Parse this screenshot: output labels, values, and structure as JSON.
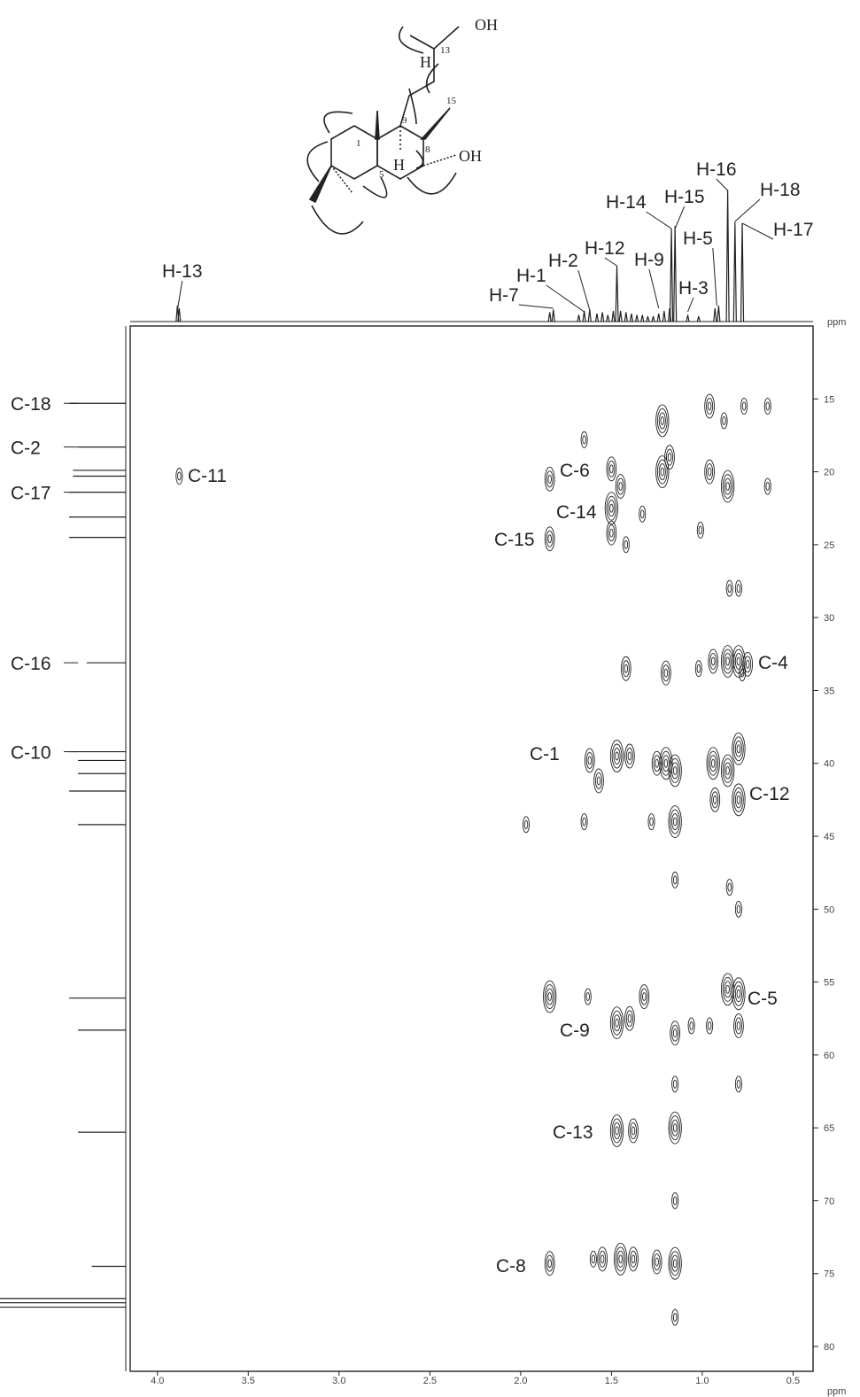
{
  "structure": {
    "labels": [
      "OH",
      "13",
      "H",
      "15",
      "9",
      "8",
      "OH",
      "1",
      "5",
      "H"
    ]
  },
  "chart_data": {
    "type": "hmbc",
    "x_label": "ppm",
    "y_label": "ppm",
    "xlim": [
      4.15,
      0.39
    ],
    "xticks": [
      {
        "value": 4,
        "label": "4.0"
      },
      {
        "value": 3.5,
        "label": "3.5"
      },
      {
        "value": 3,
        "label": "3.0"
      },
      {
        "value": 2.5,
        "label": "2.5"
      },
      {
        "value": 2,
        "label": "2.0"
      },
      {
        "value": 1.5,
        "label": "1.5"
      },
      {
        "value": 1,
        "label": "1.0"
      },
      {
        "value": 0.5,
        "label": "0.5"
      }
    ],
    "ylim": [
      10,
      81.7
    ],
    "yticks": [
      15,
      20,
      25,
      30,
      35,
      40,
      45,
      50,
      55,
      60,
      65,
      70,
      75,
      80
    ],
    "proton_spectrum": {
      "ppm": [
        3.89,
        3.88,
        1.84,
        1.82,
        1.68,
        1.65,
        1.62,
        1.58,
        1.55,
        1.52,
        1.49,
        1.47,
        1.45,
        1.42,
        1.39,
        1.36,
        1.33,
        1.3,
        1.27,
        1.24,
        1.21,
        1.18,
        1.17,
        1.15,
        1.08,
        1.02,
        0.93,
        0.91,
        0.86,
        0.82,
        0.78
      ],
      "intensity": [
        12,
        10,
        7,
        9,
        5,
        8,
        9,
        6,
        7,
        5,
        8,
        42,
        8,
        7,
        6,
        5,
        5,
        4,
        4,
        6,
        8,
        10,
        70,
        72,
        5,
        4,
        10,
        12,
        99,
        75,
        74
      ],
      "labels": [
        {
          "text": "H-13",
          "ppm": 3.89
        },
        {
          "text": "H-7",
          "ppm": 1.82
        },
        {
          "text": "H-1",
          "ppm": 1.65
        },
        {
          "text": "H-2",
          "ppm": 1.62
        },
        {
          "text": "H-12",
          "ppm": 1.47
        },
        {
          "text": "H-9",
          "ppm": 1.24
        },
        {
          "text": "H-14",
          "ppm": 1.17
        },
        {
          "text": "H-15",
          "ppm": 1.15
        },
        {
          "text": "H-3",
          "ppm": 1.08
        },
        {
          "text": "H-5",
          "ppm": 0.92
        },
        {
          "text": "H-16",
          "ppm": 0.86
        },
        {
          "text": "H-18",
          "ppm": 0.82
        },
        {
          "text": "H-17",
          "ppm": 0.78
        }
      ]
    },
    "carbon_spectrum": {
      "ppm": [
        15.3,
        18.3,
        19.9,
        20.3,
        21.4,
        23.1,
        24.5,
        33.1,
        39.2,
        39.8,
        40.7,
        41.9,
        44.2,
        56.1,
        58.3,
        65.3,
        74.5,
        76.7,
        77.0,
        77.3
      ],
      "intensity": [
        45,
        38,
        42,
        42,
        45,
        45,
        45,
        31,
        45,
        38,
        38,
        45,
        38,
        45,
        38,
        38,
        27,
        100,
        100,
        100
      ],
      "labels": [
        {
          "text": "C-18",
          "ppm": 15.3
        },
        {
          "text": "C-2",
          "ppm": 18.3
        },
        {
          "text": "C-17",
          "ppm": 21.4
        },
        {
          "text": "C-16",
          "ppm": 33.1
        },
        {
          "text": "C-10",
          "ppm": 39.2
        }
      ]
    },
    "cross_peaks": {
      "x": [
        3.88,
        1.84,
        1.84,
        1.84,
        1.84,
        1.97,
        1.65,
        1.65,
        1.62,
        1.57,
        1.63,
        1.6,
        1.55,
        1.5,
        1.5,
        1.5,
        1.45,
        1.42,
        1.47,
        1.42,
        1.4,
        1.47,
        1.4,
        1.47,
        1.38,
        1.45,
        1.38,
        1.33,
        1.32,
        1.28,
        1.25,
        1.25,
        1.22,
        1.22,
        1.18,
        1.2,
        1.2,
        1.15,
        1.15,
        1.15,
        1.15,
        1.15,
        1.15,
        1.15,
        1.15,
        1.15,
        1.06,
        1.02,
        1.01,
        0.96,
        0.96,
        0.94,
        0.94,
        0.93,
        0.96,
        0.88,
        0.86,
        0.86,
        0.86,
        0.86,
        0.85,
        0.85,
        0.8,
        0.8,
        0.8,
        0.8,
        0.8,
        0.8,
        0.8,
        0.8,
        0.77,
        0.64,
        0.64,
        0.78,
        0.75
      ],
      "y": [
        20.3,
        20.5,
        24.6,
        56.0,
        74.3,
        44.2,
        17.8,
        44.0,
        39.8,
        41.2,
        56.0,
        74.0,
        74.0,
        19.8,
        22.5,
        24.2,
        21.0,
        25.0,
        39.5,
        33.5,
        39.5,
        57.8,
        57.5,
        65.2,
        65.2,
        74.0,
        74.0,
        22.9,
        56.0,
        44.0,
        74.2,
        40.0,
        16.5,
        20.0,
        19.0,
        33.8,
        40.0,
        40.5,
        44.0,
        48.0,
        58.5,
        62.0,
        65.0,
        70.0,
        74.3,
        78.0,
        58.0,
        33.5,
        24.0,
        15.5,
        20.0,
        33.0,
        40.0,
        42.5,
        58.0,
        16.5,
        21.0,
        33.0,
        40.5,
        55.5,
        28.0,
        48.5,
        33.0,
        39.0,
        42.5,
        55.8,
        58.0,
        28.0,
        50.0,
        62.0,
        15.5,
        15.5,
        21.0,
        33.8,
        33.2
      ],
      "intensity": [
        1,
        2,
        2,
        3,
        2,
        1,
        1,
        1,
        2,
        2,
        1,
        1,
        2,
        2,
        3,
        2,
        2,
        1,
        3,
        2,
        2,
        3,
        2,
        3,
        2,
        3,
        2,
        1,
        2,
        1,
        2,
        2,
        3,
        3,
        2,
        2,
        3,
        3,
        3,
        1,
        2,
        1,
        3,
        1,
        3,
        1,
        1,
        1,
        1,
        2,
        2,
        2,
        3,
        2,
        1,
        1,
        3,
        3,
        3,
        3,
        1,
        1,
        3,
        3,
        3,
        3,
        2,
        1,
        1,
        1,
        1,
        1,
        1,
        1,
        2
      ]
    },
    "annotations": [
      "C-11",
      "C-6",
      "C-14",
      "C-15",
      "C-4",
      "C-1",
      "C-12",
      "C-5",
      "C-9",
      "C-13",
      "C-8"
    ]
  }
}
